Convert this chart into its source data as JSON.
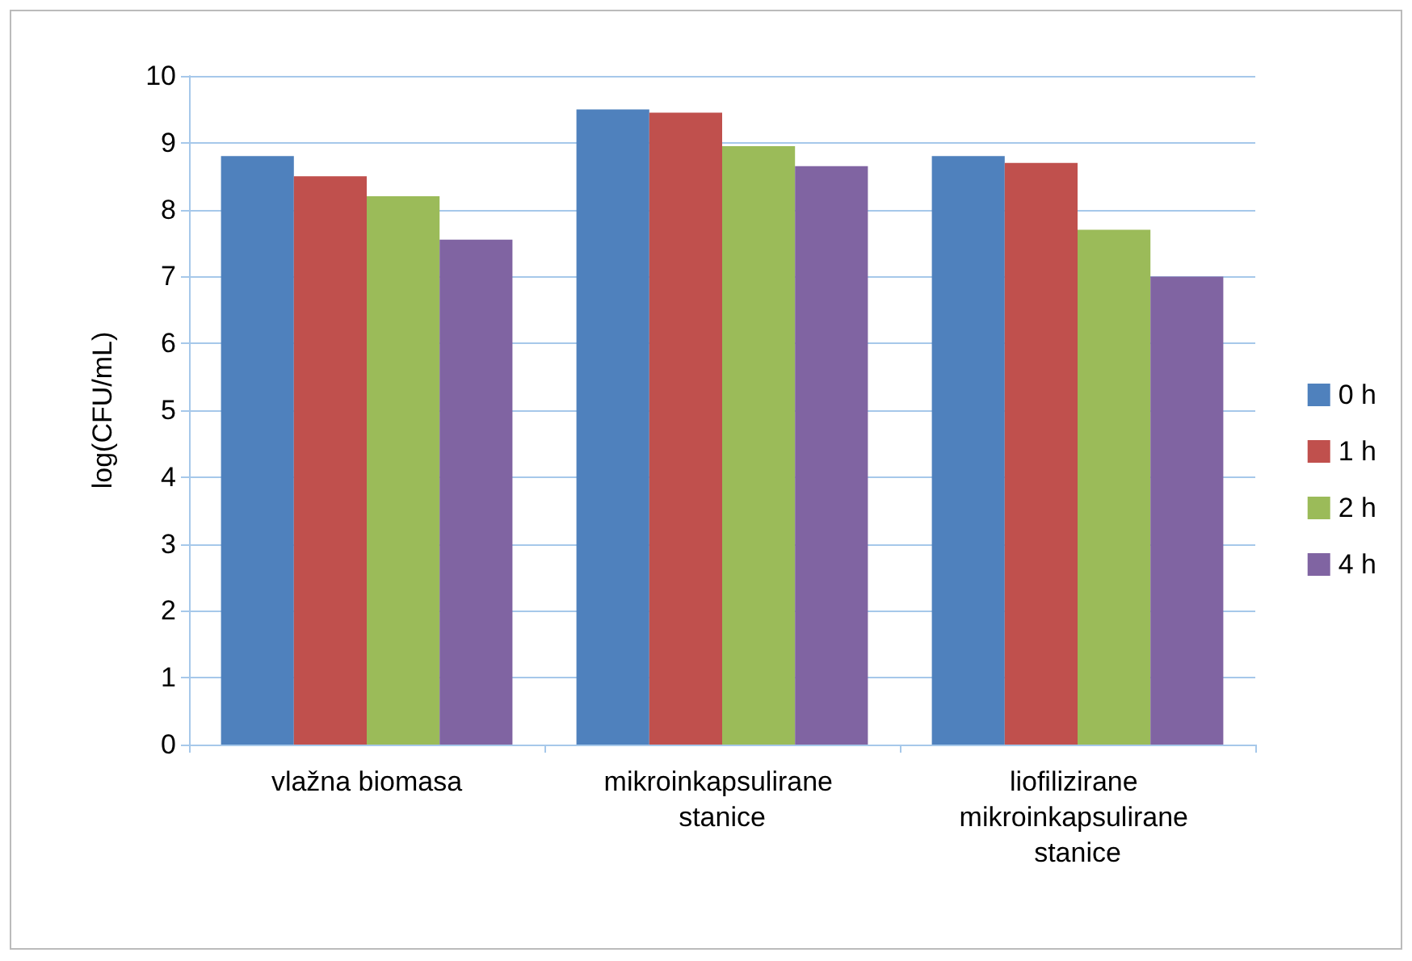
{
  "chart_data": {
    "type": "bar",
    "ylabel": "log(CFU/mL)",
    "categories": [
      "vlažna biomasa",
      "mikroinkapsulirane stanice",
      "liofilizirane mikroinkapsulirane stanice"
    ],
    "series": [
      {
        "name": "0 h",
        "color": "#4f81bd",
        "values": [
          8.8,
          9.5,
          8.8
        ]
      },
      {
        "name": "1 h",
        "color": "#c0504d",
        "values": [
          8.5,
          9.45,
          8.7
        ]
      },
      {
        "name": "2 h",
        "color": "#9bbb59",
        "values": [
          8.2,
          8.95,
          7.7
        ]
      },
      {
        "name": "4 h",
        "color": "#8064a2",
        "values": [
          7.55,
          8.65,
          7.0
        ]
      }
    ],
    "ylim": [
      0,
      10
    ],
    "yticks": [
      0,
      1,
      2,
      3,
      4,
      5,
      6,
      7,
      8,
      9,
      10
    ],
    "grid": "y",
    "legend": "right"
  }
}
